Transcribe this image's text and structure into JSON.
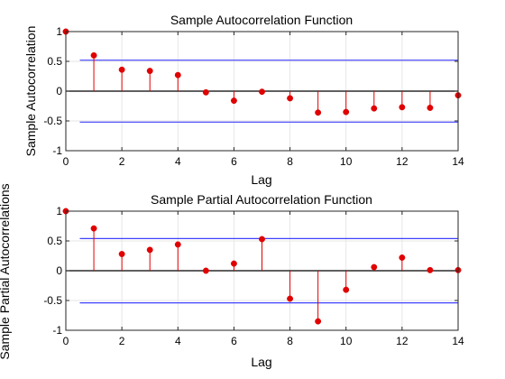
{
  "chart_data": [
    {
      "type": "stem",
      "title": "Sample Autocorrelation Function",
      "xlabel": "Lag",
      "ylabel": "Sample Autocorrelation",
      "xlim": [
        0,
        14
      ],
      "ylim": [
        -1,
        1
      ],
      "xticks": [
        "0",
        "2",
        "4",
        "6",
        "8",
        "10",
        "12",
        "14"
      ],
      "yticks": [
        "-1",
        "-0.5",
        "0",
        "0.5",
        "1"
      ],
      "grid": true,
      "x": [
        0,
        1,
        2,
        3,
        4,
        5,
        6,
        7,
        8,
        9,
        10,
        11,
        12,
        13,
        14
      ],
      "values": [
        1.0,
        0.6,
        0.36,
        0.34,
        0.27,
        -0.02,
        -0.16,
        -0.01,
        -0.12,
        -0.36,
        -0.35,
        -0.29,
        -0.27,
        -0.28,
        -0.07
      ],
      "confidence_bounds": [
        0.52,
        -0.52
      ],
      "colors": {
        "stem": "#e00000",
        "marker": "#e00000",
        "bounds": "#4040ff",
        "baseline": "#000000"
      }
    },
    {
      "type": "stem",
      "title": "Sample Partial Autocorrelation Function",
      "xlabel": "Lag",
      "ylabel": "Sample Partial Autocorrelations",
      "xlim": [
        0,
        14
      ],
      "ylim": [
        -1,
        1
      ],
      "xticks": [
        "0",
        "2",
        "4",
        "6",
        "8",
        "10",
        "12",
        "14"
      ],
      "yticks": [
        "-1",
        "-0.5",
        "0",
        "0.5",
        "1"
      ],
      "grid": true,
      "x": [
        0,
        1,
        2,
        3,
        4,
        5,
        6,
        7,
        8,
        9,
        10,
        11,
        12,
        13,
        14
      ],
      "values": [
        1.0,
        0.71,
        0.28,
        0.35,
        0.44,
        0.0,
        0.12,
        0.53,
        -0.47,
        -0.85,
        -0.32,
        0.06,
        0.22,
        0.01,
        0.01
      ],
      "confidence_bounds": [
        0.54,
        -0.54
      ],
      "colors": {
        "stem": "#e00000",
        "marker": "#e00000",
        "bounds": "#4040ff",
        "baseline": "#000000"
      }
    }
  ]
}
